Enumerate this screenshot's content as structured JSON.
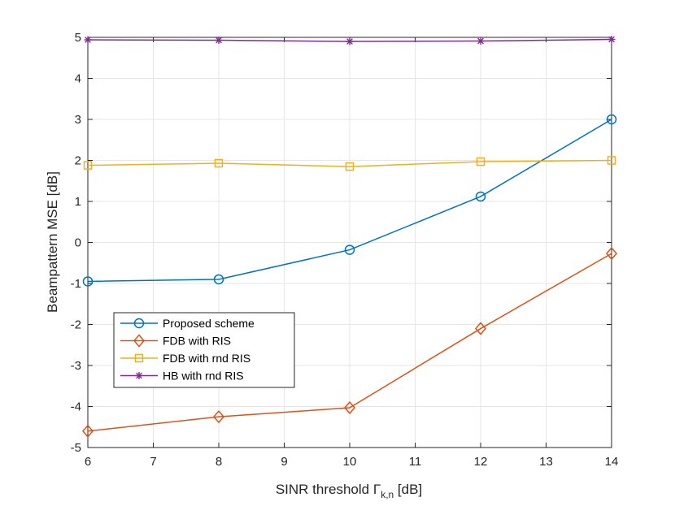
{
  "chart_data": {
    "type": "line",
    "title": "",
    "xlabel": {
      "prefix": "SINR threshold ",
      "symbol": "Γ",
      "subscript": "k,n",
      "suffix": " [dB]"
    },
    "ylabel": "Beampattern MSE [dB]",
    "xlim": [
      6,
      14
    ],
    "ylim": [
      -5,
      5
    ],
    "xticks": [
      6,
      7,
      8,
      9,
      10,
      11,
      12,
      13,
      14
    ],
    "yticks": [
      -5,
      -4,
      -3,
      -2,
      -1,
      0,
      1,
      2,
      3,
      4,
      5
    ],
    "grid": true,
    "legend_position": "lower-left",
    "series": [
      {
        "name": "Proposed scheme",
        "marker": "circle",
        "color": "#0072BD",
        "x": [
          6,
          8,
          10,
          12,
          14
        ],
        "y": [
          -0.95,
          -0.9,
          -0.18,
          1.12,
          3.0
        ]
      },
      {
        "name": "FDB with RIS",
        "marker": "diamond",
        "color": "#D95319",
        "x": [
          6,
          8,
          10,
          12,
          14
        ],
        "y": [
          -4.6,
          -4.25,
          -4.03,
          -2.1,
          -0.27
        ]
      },
      {
        "name": "FDB with rnd RIS",
        "marker": "square",
        "color": "#EDB120",
        "x": [
          6,
          8,
          10,
          12,
          14
        ],
        "y": [
          1.88,
          1.93,
          1.85,
          1.97,
          2.0
        ]
      },
      {
        "name": "HB with rnd RIS",
        "marker": "asterisk",
        "color": "#7E2F8E",
        "x": [
          6,
          8,
          10,
          12,
          14
        ],
        "y": [
          4.94,
          4.93,
          4.9,
          4.91,
          4.95
        ]
      }
    ]
  }
}
